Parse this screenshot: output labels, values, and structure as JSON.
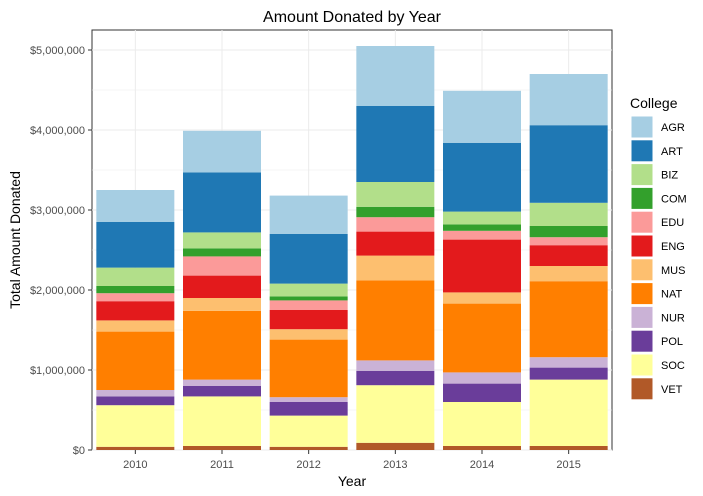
{
  "chart_data": {
    "type": "bar",
    "stacked": true,
    "title": "Amount Donated by Year",
    "xlabel": "Year",
    "ylabel": "Total Amount Donated",
    "categories": [
      "2010",
      "2011",
      "2012",
      "2013",
      "2014",
      "2015"
    ],
    "ylim": [
      0,
      5250000
    ],
    "yticks": [
      0,
      1000000,
      2000000,
      3000000,
      4000000,
      5000000
    ],
    "ytick_labels": [
      "$0",
      "$1,000,000",
      "$2,000,000",
      "$3,000,000",
      "$4,000,000",
      "$5,000,000"
    ],
    "grid": true,
    "legend": {
      "title": "College",
      "position": "right"
    },
    "series": [
      {
        "name": "VET",
        "color": "#B15928",
        "values": [
          40000,
          50000,
          40000,
          90000,
          50000,
          50000
        ]
      },
      {
        "name": "SOC",
        "color": "#FFFF99",
        "values": [
          520000,
          620000,
          390000,
          720000,
          550000,
          830000
        ]
      },
      {
        "name": "POL",
        "color": "#6A3D9A",
        "values": [
          110000,
          130000,
          170000,
          180000,
          230000,
          150000
        ]
      },
      {
        "name": "NUR",
        "color": "#CAB2D6",
        "values": [
          80000,
          80000,
          60000,
          130000,
          140000,
          130000
        ]
      },
      {
        "name": "NAT",
        "color": "#FF7F00",
        "values": [
          730000,
          860000,
          720000,
          1000000,
          860000,
          950000
        ]
      },
      {
        "name": "MUS",
        "color": "#FDBF6F",
        "values": [
          140000,
          160000,
          130000,
          310000,
          140000,
          190000
        ]
      },
      {
        "name": "ENG",
        "color": "#E31A1C",
        "values": [
          240000,
          280000,
          240000,
          300000,
          660000,
          260000
        ]
      },
      {
        "name": "EDU",
        "color": "#FB9A99",
        "values": [
          100000,
          240000,
          120000,
          180000,
          110000,
          100000
        ]
      },
      {
        "name": "COM",
        "color": "#33A02C",
        "values": [
          90000,
          100000,
          50000,
          130000,
          80000,
          140000
        ]
      },
      {
        "name": "BIZ",
        "color": "#B2DF8A",
        "values": [
          230000,
          200000,
          160000,
          310000,
          160000,
          290000
        ]
      },
      {
        "name": "ART",
        "color": "#1F78B4",
        "values": [
          570000,
          750000,
          620000,
          950000,
          860000,
          970000
        ]
      },
      {
        "name": "AGR",
        "color": "#A6CEE3",
        "values": [
          400000,
          520000,
          480000,
          750000,
          650000,
          640000
        ]
      }
    ],
    "legend_order": [
      "AGR",
      "ART",
      "BIZ",
      "COM",
      "EDU",
      "ENG",
      "MUS",
      "NAT",
      "NUR",
      "POL",
      "SOC",
      "VET"
    ]
  }
}
